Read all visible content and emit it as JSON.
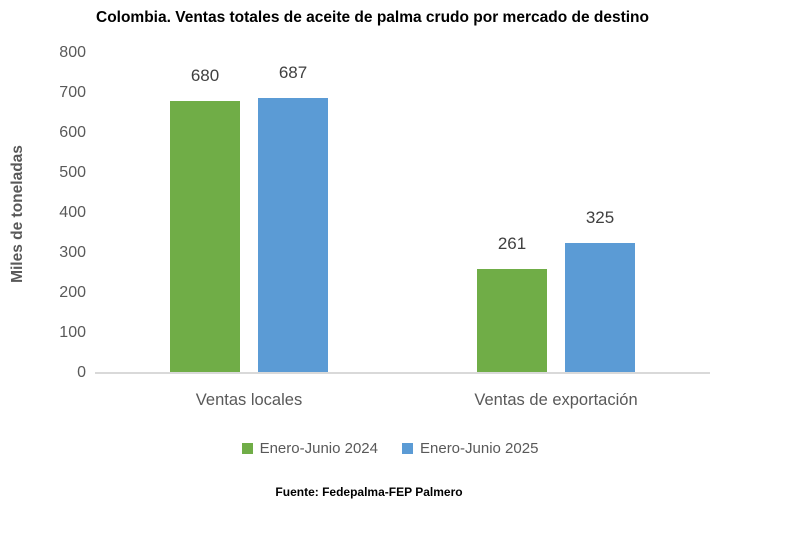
{
  "chart_data": {
    "type": "bar",
    "title": "Colombia. Ventas totales de aceite de palma crudo por mercado de destino",
    "ylabel": "Miles de toneladas",
    "xlabel": "",
    "categories": [
      "Ventas locales",
      "Ventas de exportación"
    ],
    "series": [
      {
        "name": "Enero-Junio 2024",
        "color": "#70AD47",
        "values": [
          680,
          261
        ]
      },
      {
        "name": "Enero-Junio 2025",
        "color": "#5B9BD5",
        "values": [
          687,
          325
        ]
      }
    ],
    "ylim": [
      0,
      800
    ],
    "yticks": [
      0,
      100,
      200,
      300,
      400,
      500,
      600,
      700,
      800
    ],
    "grid": false,
    "legend_position": "bottom",
    "axis_color": "#D9D9D9",
    "tick_text_color": "#595959",
    "data_label_color": "#404040",
    "source": "Fuente: Fedepalma-FEP Palmero"
  }
}
